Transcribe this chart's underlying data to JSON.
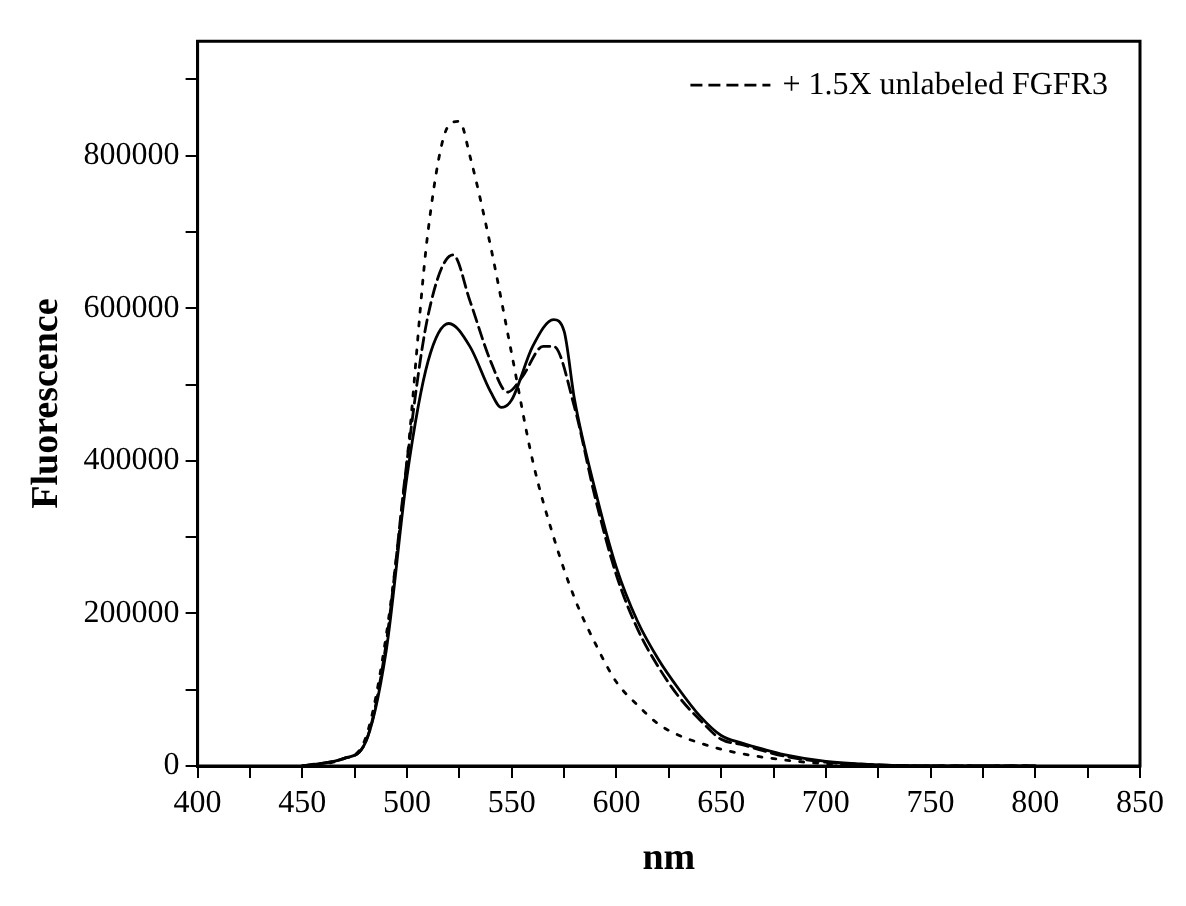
{
  "chart_data": {
    "type": "line",
    "xlabel": "nm",
    "ylabel": "Fluorescence",
    "xlim": [
      400,
      850
    ],
    "xticks": [
      400,
      {
        "value": 425,
        "label": null
      },
      450,
      {
        "value": 475,
        "label": null
      },
      500,
      {
        "value": 525,
        "label": null
      },
      550,
      {
        "value": 575,
        "label": null
      },
      600,
      {
        "value": 625,
        "label": null
      },
      650,
      {
        "value": 675,
        "label": null
      },
      700,
      {
        "value": 725,
        "label": null
      },
      750,
      {
        "value": 775,
        "label": null
      },
      800,
      {
        "value": 825,
        "label": null
      },
      850
    ],
    "ylim": [
      0,
      950000
    ],
    "yticks": [
      0,
      {
        "value": 100000,
        "label": null
      },
      200000,
      {
        "value": 300000,
        "label": null
      },
      400000,
      {
        "value": 500000,
        "label": null
      },
      600000,
      {
        "value": 700000,
        "label": null
      },
      800000,
      {
        "value": 900000,
        "label": null
      }
    ],
    "grid": false,
    "legend": "top right",
    "marker": "none",
    "series": [
      {
        "color": "#000000",
        "line_style": "solid",
        "x": [
          450,
          470,
          480,
          490,
          500,
          510,
          520,
          530,
          540,
          545,
          550,
          560,
          570,
          575,
          580,
          590,
          600,
          610,
          620,
          630,
          640,
          650,
          660,
          670,
          680,
          700,
          720,
          750,
          800
        ],
        "values": [
          0,
          10000,
          30000,
          150000,
          380000,
          530000,
          580000,
          550000,
          490000,
          470000,
          480000,
          550000,
          585000,
          570000,
          480000,
          360000,
          260000,
          190000,
          140000,
          100000,
          65000,
          40000,
          30000,
          22000,
          15000,
          6000,
          2000,
          0,
          0
        ]
      },
      {
        "name": "+ 1.5X unlabeled FGFR3",
        "color": "#000000",
        "line_style": "dashed",
        "x": [
          450,
          470,
          480,
          490,
          500,
          510,
          522,
          530,
          540,
          548,
          555,
          565,
          570,
          580,
          590,
          600,
          610,
          620,
          630,
          640,
          650,
          660,
          670,
          680,
          700,
          720,
          750,
          800
        ],
        "values": [
          0,
          10000,
          30000,
          160000,
          400000,
          590000,
          670000,
          610000,
          530000,
          490000,
          510000,
          550000,
          550000,
          470000,
          350000,
          250000,
          180000,
          130000,
          90000,
          60000,
          35000,
          28000,
          20000,
          13000,
          5000,
          2000,
          0,
          0
        ]
      },
      {
        "color": "#000000",
        "line_style": "dotted",
        "x": [
          450,
          470,
          480,
          490,
          500,
          510,
          520,
          525,
          530,
          540,
          550,
          560,
          570,
          580,
          590,
          600,
          610,
          620,
          630,
          640,
          650,
          660,
          680,
          700,
          750,
          800
        ],
        "values": [
          0,
          10000,
          35000,
          170000,
          400000,
          700000,
          840000,
          845000,
          800000,
          680000,
          540000,
          400000,
          300000,
          220000,
          160000,
          110000,
          80000,
          55000,
          40000,
          30000,
          22000,
          16000,
          8000,
          3000,
          0,
          0
        ]
      }
    ]
  }
}
